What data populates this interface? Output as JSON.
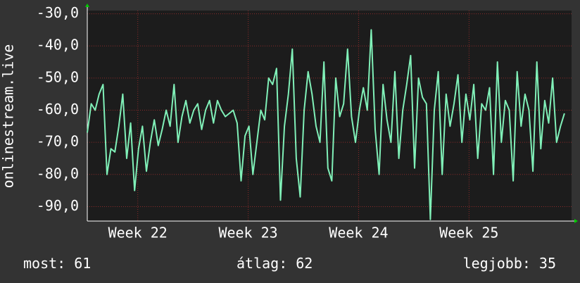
{
  "chart_data": {
    "type": "line",
    "y_label": "onlinestream.live",
    "x": [
      0,
      0.25,
      0.5,
      0.75,
      1,
      1.25,
      1.5,
      1.75,
      2,
      2.25,
      2.5,
      2.75,
      3,
      3.25,
      3.5,
      3.75,
      4,
      4.25,
      4.5,
      4.75,
      5,
      5.25,
      5.5,
      5.75,
      6,
      6.25,
      6.5,
      6.75,
      7,
      7.25,
      7.5,
      7.75,
      8,
      8.25,
      8.5,
      8.75,
      9,
      9.25,
      9.5,
      9.75,
      10,
      10.25,
      10.5,
      10.75,
      11,
      11.25,
      11.5,
      11.75,
      12,
      12.25,
      12.5,
      12.75,
      13,
      13.25,
      13.5,
      13.75,
      14,
      14.25,
      14.5,
      14.75,
      15,
      15.25,
      15.5,
      15.75,
      16,
      16.25,
      16.5,
      16.75,
      17,
      17.25,
      17.5,
      17.75,
      18,
      18.25,
      18.5,
      18.75,
      19,
      19.25,
      19.5,
      19.75,
      20,
      20.25,
      20.5,
      20.75,
      21,
      21.25,
      21.5,
      21.75,
      22,
      22.25,
      22.5,
      22.75,
      23,
      23.25,
      23.5,
      23.75,
      24,
      24.25,
      24.5,
      24.75,
      25,
      25.25,
      25.5,
      25.75,
      26,
      26.25,
      26.5,
      26.75,
      27,
      27.25,
      27.5,
      27.75,
      28,
      28.25,
      28.5,
      28.75,
      29,
      29.25,
      29.5,
      29.75,
      30,
      30.25
    ],
    "series": [
      {
        "name": "onlinestream.live",
        "color": "#80f0b8",
        "values": [
          -67,
          -58,
          -60,
          -55,
          -52,
          -80,
          -72,
          -73,
          -65,
          -55,
          -75,
          -64,
          -85,
          -72,
          -65,
          -79,
          -70,
          -63,
          -71,
          -66,
          -60,
          -65,
          -52,
          -70,
          -62,
          -57,
          -64,
          -60,
          -58,
          -66,
          -60,
          -57,
          -64,
          -57,
          -60,
          -62,
          -61,
          -60,
          -64,
          -82,
          -68,
          -65,
          -80,
          -70,
          -60,
          -63,
          -50,
          -52,
          -47,
          -88,
          -65,
          -55,
          -41,
          -75,
          -87,
          -60,
          -48,
          -55,
          -65,
          -70,
          -45,
          -78,
          -82,
          -50,
          -62,
          -58,
          -41,
          -62,
          -70,
          -60,
          -53,
          -60,
          -35,
          -66,
          -80,
          -52,
          -63,
          -70,
          -48,
          -75,
          -60,
          -52,
          -43,
          -78,
          -50,
          -56,
          -58,
          -94,
          -60,
          -48,
          -80,
          -55,
          -65,
          -58,
          -49,
          -70,
          -55,
          -63,
          -52,
          -75,
          -58,
          -60,
          -53,
          -80,
          -45,
          -70,
          -57,
          -60,
          -82,
          -48,
          -65,
          -55,
          -60,
          -79,
          -45,
          -72,
          -57,
          -64,
          -50,
          -70,
          -65,
          -61
        ]
      }
    ],
    "xlim": [
      0,
      30.7
    ],
    "xticks": [
      {
        "value": 3.2,
        "label": "Week 22"
      },
      {
        "value": 10.2,
        "label": "Week 23"
      },
      {
        "value": 17.2,
        "label": "Week 24"
      },
      {
        "value": 24.2,
        "label": "Week 25"
      }
    ],
    "ylim": [
      -94.5,
      -29
    ],
    "yticks": [
      {
        "value": -30,
        "label": "-30,0"
      },
      {
        "value": -40,
        "label": "-40,0"
      },
      {
        "value": -50,
        "label": "-50,0"
      },
      {
        "value": -60,
        "label": "-60,0"
      },
      {
        "value": -70,
        "label": "-70,0"
      },
      {
        "value": -80,
        "label": "-80,0"
      },
      {
        "value": -90,
        "label": "-90,0"
      }
    ],
    "grid": true,
    "stats": [
      {
        "label": "most:",
        "value": 61
      },
      {
        "label": "átlag:",
        "value": 62
      },
      {
        "label": "legjobb:",
        "value": 35
      }
    ]
  }
}
